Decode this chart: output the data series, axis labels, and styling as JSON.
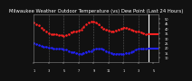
{
  "title": "Milwaukee Weather Outdoor Temperature (vs) Dew Point (Last 24 Hours)",
  "title_fontsize": 3.8,
  "bg_color": "#111111",
  "plot_bg_color": "#111111",
  "text_color": "#ffffff",
  "temp_color": "#ff2222",
  "dew_color": "#2222ff",
  "grid_color": "#888888",
  "current_line_color_temp": "#ff2222",
  "current_line_color_dew": "#2222ff",
  "temp_x": [
    0,
    1,
    2,
    3,
    4,
    5,
    6,
    7,
    8,
    9,
    10,
    11,
    12,
    13,
    14,
    15,
    16,
    17,
    18,
    19,
    20,
    21,
    22,
    23,
    24,
    25,
    26,
    27,
    28,
    29,
    30,
    31,
    32,
    33,
    34,
    35,
    36,
    37,
    38,
    39,
    40,
    41,
    42,
    43,
    44,
    45
  ],
  "temp_y": [
    46,
    44,
    43,
    41,
    39,
    37,
    35,
    34,
    34,
    34,
    33,
    33,
    32,
    33,
    34,
    36,
    37,
    37,
    38,
    39,
    42,
    44,
    46,
    47,
    47,
    46,
    44,
    42,
    40,
    39,
    38,
    37,
    37,
    38,
    39,
    40,
    41,
    41,
    40,
    39,
    38,
    37,
    37,
    36,
    35,
    34
  ],
  "dew_x": [
    0,
    1,
    2,
    3,
    4,
    5,
    6,
    7,
    8,
    9,
    10,
    11,
    12,
    13,
    14,
    15,
    16,
    17,
    18,
    19,
    20,
    21,
    22,
    23,
    24,
    25,
    26,
    27,
    28,
    29,
    30,
    31,
    32,
    33,
    34,
    35,
    36,
    37,
    38,
    39,
    40,
    41,
    42,
    43,
    44,
    45
  ],
  "dew_y": [
    25,
    24,
    23,
    22,
    21,
    21,
    20,
    20,
    19,
    19,
    19,
    19,
    18,
    18,
    17,
    16,
    16,
    15,
    14,
    14,
    15,
    16,
    17,
    17,
    18,
    19,
    19,
    19,
    18,
    17,
    16,
    15,
    14,
    14,
    14,
    14,
    14,
    15,
    15,
    16,
    17,
    18,
    19,
    19,
    19,
    19
  ],
  "current_temp_y": 34,
  "current_dew_y": 19,
  "ylim": [
    5,
    55
  ],
  "xlim": [
    0,
    50
  ],
  "ytick_vals": [
    10,
    15,
    20,
    25,
    30,
    35,
    40,
    45,
    50
  ],
  "ytick_labels": [
    "10",
    "15",
    "20",
    "25",
    "30",
    "35",
    "40",
    "45",
    "50"
  ],
  "vline_positions": [
    6,
    12,
    18,
    24,
    30,
    36,
    42
  ],
  "tick_positions": [
    0,
    6,
    12,
    18,
    24,
    30,
    36,
    42,
    48
  ],
  "tick_labels": [
    "1",
    "3",
    "5",
    "7",
    "9",
    "11",
    "1",
    "3",
    "5"
  ],
  "right_vline_x": 46,
  "right_bar_x_end": 50
}
